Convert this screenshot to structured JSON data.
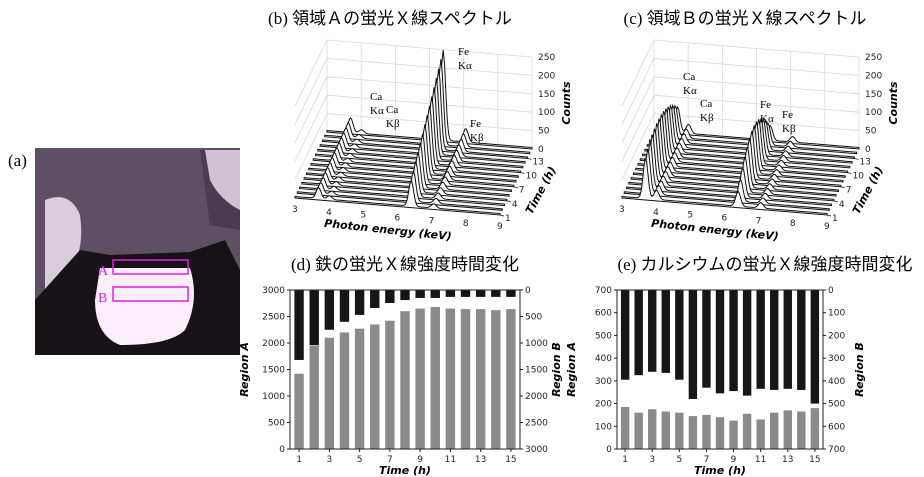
{
  "panel_a": {
    "label": "(a)",
    "region_labels": [
      "A",
      "B"
    ]
  },
  "chart_data": [
    {
      "type": "waterfall3d",
      "title": "(b) 領域Ａの蛍光Ｘ線スペクトル",
      "xlabel": "Photon energy (keV)",
      "ylabel": "Time (h)",
      "zlabel": "Counts",
      "xlim": [
        3,
        9
      ],
      "xticks": [
        3,
        4,
        5,
        6,
        7,
        8,
        9
      ],
      "ylim": [
        1,
        15
      ],
      "yticks": [
        1,
        4,
        7,
        10,
        13
      ],
      "zlim": [
        0,
        250
      ],
      "zticks": [
        0,
        50,
        100,
        150,
        200,
        250
      ],
      "annotations": [
        [
          "Ca",
          "Kα"
        ],
        [
          "Ca",
          "Kβ"
        ],
        [
          "Fe",
          "Kα"
        ],
        [
          "Fe",
          "Kβ"
        ]
      ]
    },
    {
      "type": "waterfall3d",
      "title": "(c) 領域Ｂの蛍光Ｘ線スペクトル",
      "xlabel": "Photon energy (keV)",
      "ylabel": "Time (h)",
      "zlabel": "Counts",
      "xlim": [
        3,
        9
      ],
      "xticks": [
        3,
        4,
        5,
        6,
        7,
        8,
        9
      ],
      "ylim": [
        1,
        15
      ],
      "yticks": [
        1,
        4,
        7,
        10,
        13
      ],
      "zlim": [
        0,
        250
      ],
      "zticks": [
        0,
        50,
        100,
        150,
        200,
        250
      ],
      "annotations": [
        [
          "Ca",
          "Kα"
        ],
        [
          "Ca",
          "Kβ"
        ],
        [
          "Fe",
          "Kα"
        ],
        [
          "Fe",
          "Kβ"
        ]
      ]
    },
    {
      "type": "bar",
      "title": "(d) 鉄の蛍光Ｘ線強度時間変化",
      "xlabel": "Time (h)",
      "ylabel": "Region A",
      "y2label": "Region B",
      "x": [
        1,
        2,
        3,
        4,
        5,
        6,
        7,
        8,
        9,
        10,
        11,
        12,
        13,
        14,
        15
      ],
      "xlim": [
        0.4,
        15.6
      ],
      "xticks": [
        1,
        3,
        5,
        7,
        9,
        11,
        13,
        15
      ],
      "ylim": [
        0,
        3000
      ],
      "yticks": [
        0,
        500,
        1000,
        1500,
        2000,
        2500,
        3000
      ],
      "y2lim": [
        3000,
        0
      ],
      "y2ticks": [
        0,
        500,
        1000,
        1500,
        2000,
        2500,
        3000
      ],
      "series": [
        {
          "name": "Region A",
          "color": "#8a8a8a",
          "values": [
            1420,
            1950,
            2100,
            2200,
            2270,
            2350,
            2420,
            2600,
            2650,
            2680,
            2650,
            2640,
            2640,
            2620,
            2640
          ]
        },
        {
          "name": "Region B",
          "color": "#161616",
          "axis": "y2",
          "values": [
            1320,
            1040,
            750,
            600,
            470,
            340,
            245,
            190,
            150,
            150,
            130,
            130,
            130,
            130,
            130
          ]
        }
      ]
    },
    {
      "type": "bar",
      "title": "(e) カルシウムの蛍光Ｘ線強度時間変化",
      "xlabel": "Time (h)",
      "ylabel": "Region A",
      "y2label": "Region B",
      "x": [
        1,
        2,
        3,
        4,
        5,
        6,
        7,
        8,
        9,
        10,
        11,
        12,
        13,
        14,
        15
      ],
      "xlim": [
        0.4,
        15.6
      ],
      "xticks": [
        1,
        3,
        5,
        7,
        9,
        11,
        13,
        15
      ],
      "ylim": [
        0,
        700
      ],
      "yticks": [
        0,
        100,
        200,
        300,
        400,
        500,
        600,
        700
      ],
      "y2lim": [
        700,
        0
      ],
      "y2ticks": [
        0,
        100,
        200,
        300,
        400,
        500,
        600,
        700
      ],
      "series": [
        {
          "name": "Region A",
          "color": "#8a8a8a",
          "values": [
            185,
            160,
            175,
            165,
            160,
            145,
            150,
            140,
            125,
            155,
            130,
            160,
            170,
            165,
            180
          ]
        },
        {
          "name": "Region B",
          "color": "#161616",
          "axis": "y2",
          "values": [
            395,
            375,
            360,
            365,
            395,
            480,
            430,
            455,
            445,
            465,
            435,
            440,
            435,
            440,
            500
          ]
        }
      ]
    }
  ]
}
